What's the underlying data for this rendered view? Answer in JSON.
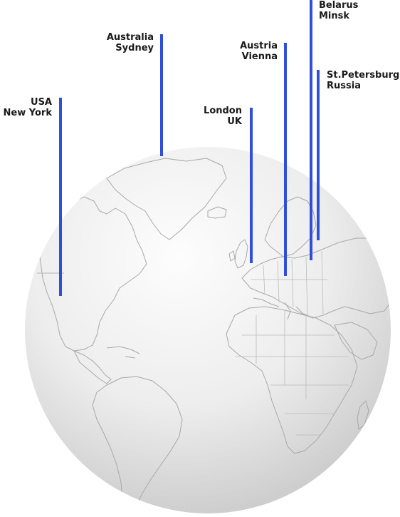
{
  "colors": {
    "pin": "#2f4fd8",
    "land_stroke": "#a8a8a8",
    "globe_light": "#fbfbfb",
    "globe_dark": "#cfcfcf",
    "label_text": "#1a1a1a"
  },
  "markers": [
    {
      "id": "usa",
      "line1": "USA",
      "line2": "New York"
    },
    {
      "id": "australia",
      "line1": "Australia",
      "line2": "Sydney"
    },
    {
      "id": "london",
      "line1": "London",
      "line2": "UK"
    },
    {
      "id": "austria",
      "line1": "Austria",
      "line2": "Vienna"
    },
    {
      "id": "belarus",
      "line1": "Belarus",
      "line2": "Minsk"
    },
    {
      "id": "stpetersburg",
      "line1": "St.Petersburg",
      "line2": "Russia"
    }
  ]
}
